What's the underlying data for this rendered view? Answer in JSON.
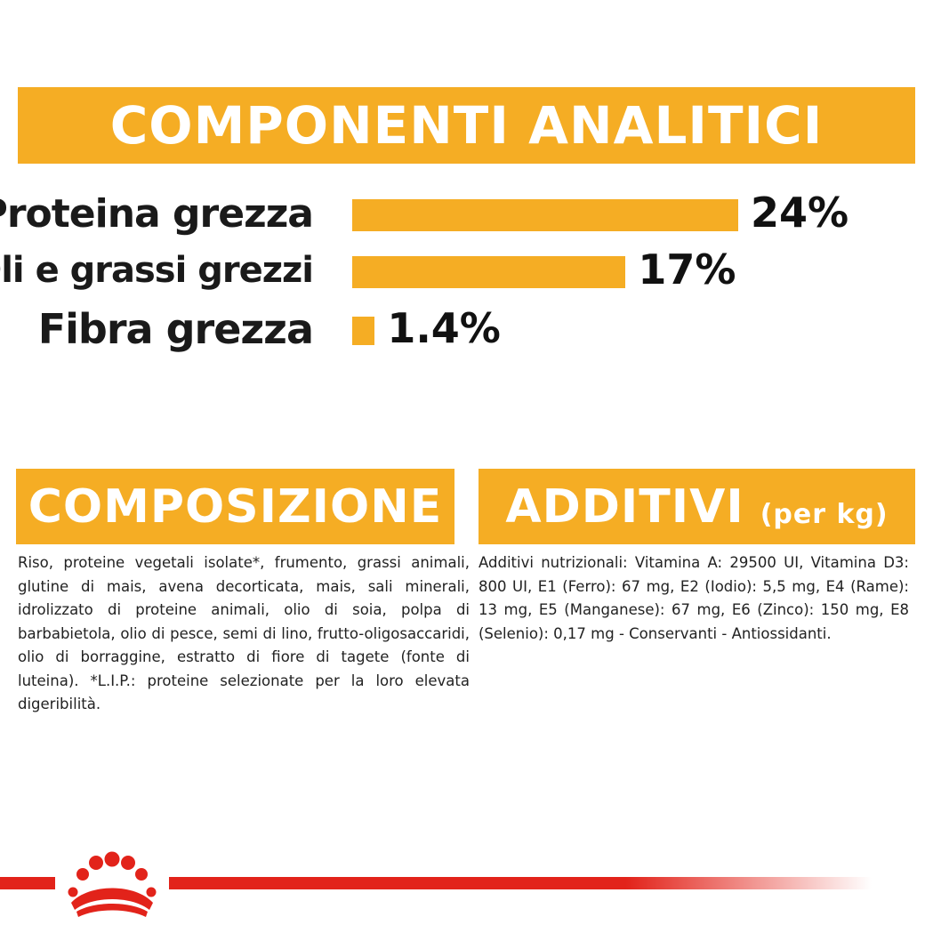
{
  "sections": {
    "analitici_title": "COMPONENTI ANALITICI",
    "composizione_title": "COMPOSIZIONE",
    "additivi_title": "ADDITIVI",
    "additivi_subtitle": "(per kg)"
  },
  "chart_data": {
    "type": "bar",
    "orientation": "horizontal",
    "title": "COMPONENTI ANALITICI",
    "categories": [
      "Proteina grezza",
      "Oli e grassi grezzi",
      "Fibra grezza"
    ],
    "values": [
      24,
      17,
      1.4
    ],
    "value_labels": [
      "24%",
      "17%",
      "1.4%"
    ],
    "unit": "%",
    "xlim": [
      0,
      24
    ],
    "grid": false,
    "bar_color": "#f5ad24"
  },
  "composizione_text": "Riso, proteine vegetali isolate*, frumento, grassi animali, glutine di mais, avena decorticata, mais, sali minerali, idrolizzato di proteine animali, olio di soia, polpa di barbabietola, olio di pesce, semi di lino, frutto-oligosaccaridi, olio di borraggine, estratto di fiore di tagete (fonte di luteina). *L.I.P.: proteine selezionate per la loro elevata digeribilità.",
  "additivi_text": "Additivi nutrizionali: Vitamina A: 29500 UI, Vitamina D3: 800 UI, E1 (Ferro): 67 mg, E2 (Iodio): 5,5 mg, E4 (Rame): 13 mg, E5 (Manganese): 67 mg, E6 (Zinco): 150 mg, E8 (Selenio): 0,17 mg - Conservanti - Antiossidanti.",
  "colors": {
    "accent": "#f5ad24",
    "brand_red": "#e2231a"
  },
  "footer": {
    "logo_icon": "royal-canin-crown-icon"
  }
}
